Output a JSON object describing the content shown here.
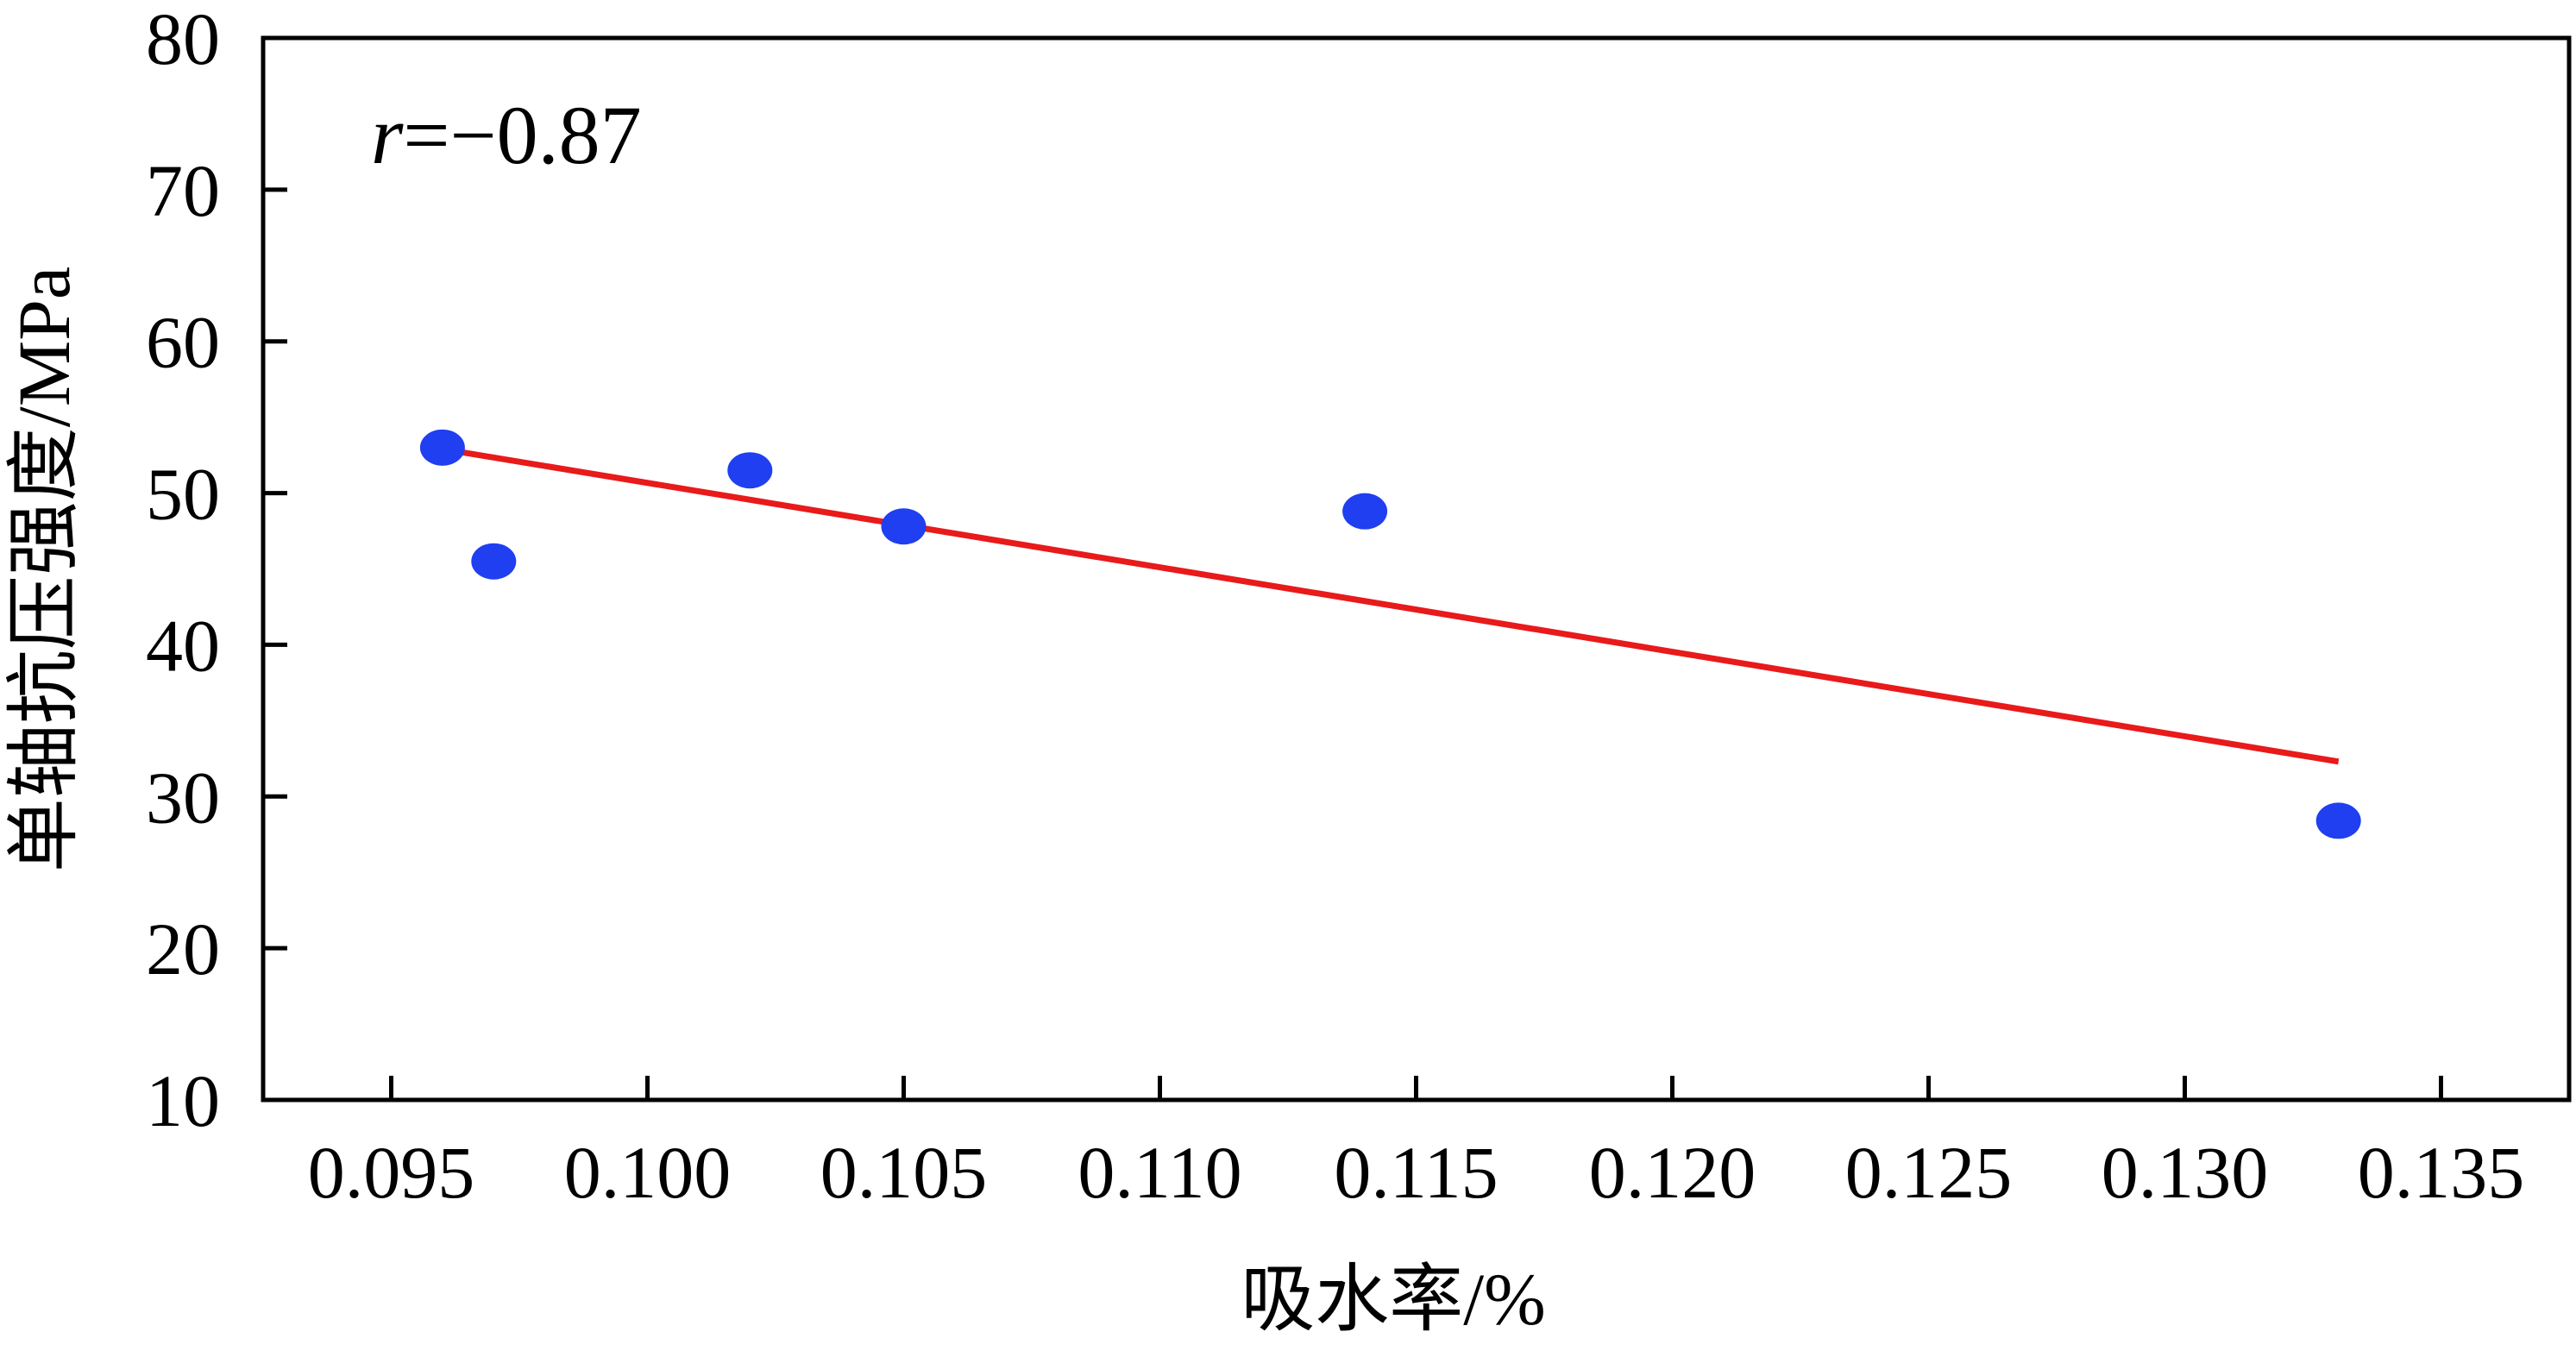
{
  "chart_data": {
    "type": "scatter",
    "xlabel": "吸水率/%",
    "ylabel": "单轴抗压强度/MPa",
    "xlim": [
      0.0925,
      0.1375
    ],
    "ylim": [
      10,
      80
    ],
    "xticks": [
      0.095,
      0.1,
      0.105,
      0.11,
      0.115,
      0.12,
      0.125,
      0.13,
      0.135
    ],
    "xtick_labels": [
      "0.095",
      "0.100",
      "0.105",
      "0.110",
      "0.115",
      "0.120",
      "0.125",
      "0.130",
      "0.135"
    ],
    "yticks": [
      10,
      20,
      30,
      40,
      50,
      60,
      70,
      80
    ],
    "ytick_labels": [
      "10",
      "20",
      "30",
      "40",
      "50",
      "60",
      "70",
      "80"
    ],
    "grid": false,
    "annotation": {
      "variable": "r",
      "text": "=−0.87",
      "position": "top-left"
    },
    "series": [
      {
        "kind": "points",
        "color": "#1f3ff0",
        "points": [
          {
            "x": 0.096,
            "y": 53.0
          },
          {
            "x": 0.097,
            "y": 45.5
          },
          {
            "x": 0.102,
            "y": 51.5
          },
          {
            "x": 0.105,
            "y": 47.8
          },
          {
            "x": 0.114,
            "y": 48.8
          },
          {
            "x": 0.133,
            "y": 28.4
          }
        ]
      },
      {
        "kind": "fit-line",
        "color": "#e81a1a",
        "points": [
          {
            "x": 0.096,
            "y": 52.9
          },
          {
            "x": 0.133,
            "y": 32.3
          }
        ]
      }
    ]
  }
}
